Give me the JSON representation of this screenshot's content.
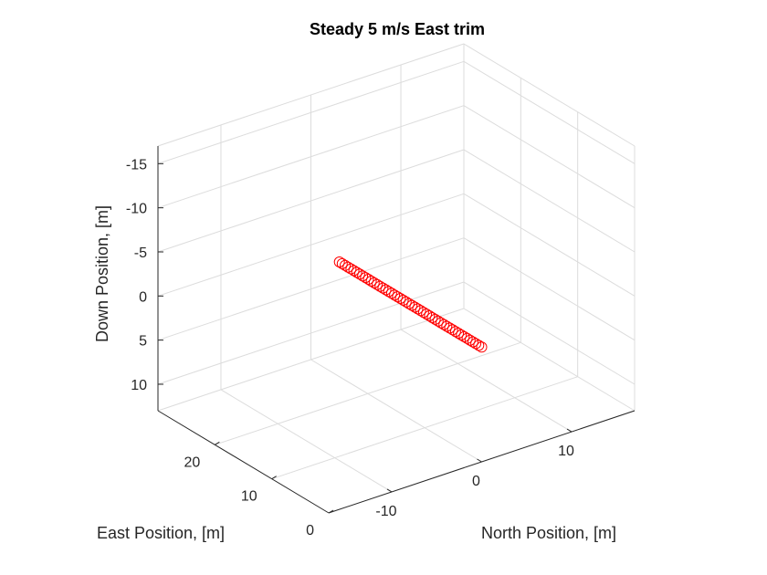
{
  "chart_data": {
    "type": "scatter",
    "projection": "3d",
    "title": "Steady 5 m/s East trim",
    "xlabel": "North Position, [m]",
    "ylabel": "East Position, [m]",
    "zlabel": "Down Position, [m]",
    "x_ticks": [
      "-10",
      "0",
      "10"
    ],
    "y_ticks": [
      "0",
      "10",
      "20"
    ],
    "z_ticks": [
      "-15",
      "-10",
      "-5",
      "0",
      "5",
      "10"
    ],
    "z_reversed": true,
    "grid": true,
    "marker": "circle-open",
    "marker_color": "#ff0000",
    "series": [
      {
        "start": [
          0,
          0,
          0
        ],
        "end": [
          0,
          25,
          0
        ],
        "n_points": 50
      }
    ]
  }
}
